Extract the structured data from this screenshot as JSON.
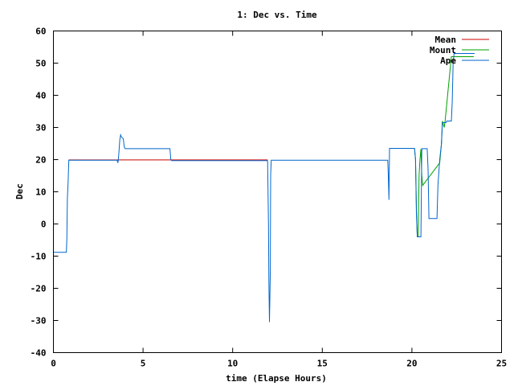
{
  "chart_data": {
    "type": "line",
    "title": "1: Dec vs. Time",
    "xlabel": "time (Elapse Hours)",
    "ylabel": "Dec",
    "xlim": [
      0,
      25
    ],
    "ylim": [
      -40,
      60
    ],
    "xticks": [
      0,
      5,
      10,
      15,
      20,
      25
    ],
    "yticks": [
      -40,
      -30,
      -20,
      -10,
      0,
      10,
      20,
      30,
      40,
      50,
      60
    ],
    "grid": false,
    "legend_position": "top-right",
    "series": [
      {
        "name": "Mean",
        "color": "#cc0000",
        "points": [
          [
            0.85,
            19.9
          ],
          [
            3.55,
            19.9
          ],
          [
            6.5,
            19.9
          ],
          [
            11.95,
            19.9
          ]
        ]
      },
      {
        "name": "Mount",
        "color": "#00a000",
        "points": [
          [
            20.15,
            23.3
          ],
          [
            20.2,
            20.0
          ],
          [
            20.25,
            5.0
          ],
          [
            20.3,
            -4.0
          ],
          [
            20.35,
            -4.0
          ],
          [
            20.4,
            15.0
          ],
          [
            20.45,
            20.0
          ],
          [
            20.5,
            23.3
          ],
          [
            20.55,
            15.0
          ],
          [
            20.6,
            12.0
          ],
          [
            21.55,
            19.0
          ],
          [
            21.65,
            25.0
          ],
          [
            21.7,
            32.0
          ],
          [
            21.8,
            30.0
          ],
          [
            21.85,
            32.0
          ],
          [
            22.2,
            52.0
          ],
          [
            23.45,
            52.0
          ]
        ]
      },
      {
        "name": "Ape",
        "color": "#0066cc",
        "points": [
          [
            0.0,
            -8.8
          ],
          [
            0.72,
            -8.8
          ],
          [
            0.75,
            -5.0
          ],
          [
            0.78,
            8.0
          ],
          [
            0.82,
            13.0
          ],
          [
            0.86,
            19.8
          ],
          [
            3.55,
            19.8
          ],
          [
            3.6,
            19.0
          ],
          [
            3.65,
            22.0
          ],
          [
            3.7,
            26.0
          ],
          [
            3.75,
            27.7
          ],
          [
            3.8,
            27.0
          ],
          [
            3.9,
            26.5
          ],
          [
            3.95,
            24.0
          ],
          [
            4.0,
            23.4
          ],
          [
            6.5,
            23.4
          ],
          [
            6.55,
            20.0
          ],
          [
            6.6,
            19.7
          ],
          [
            11.95,
            19.7
          ],
          [
            11.98,
            7.0
          ],
          [
            12.0,
            0.0
          ],
          [
            12.02,
            -18.0
          ],
          [
            12.05,
            -30.5
          ],
          [
            12.08,
            -22.0
          ],
          [
            12.1,
            -14.0
          ],
          [
            12.12,
            15.0
          ],
          [
            12.15,
            19.8
          ],
          [
            18.65,
            19.8
          ],
          [
            18.68,
            16.0
          ],
          [
            18.72,
            7.5
          ],
          [
            18.75,
            23.5
          ],
          [
            20.15,
            23.5
          ],
          [
            20.2,
            20.0
          ],
          [
            20.25,
            3.0
          ],
          [
            20.3,
            -4.0
          ],
          [
            20.5,
            -4.0
          ],
          [
            20.55,
            23.4
          ],
          [
            20.85,
            23.4
          ],
          [
            20.9,
            17.0
          ],
          [
            20.95,
            1.7
          ],
          [
            21.4,
            1.7
          ],
          [
            21.45,
            12.0
          ],
          [
            21.55,
            20.0
          ],
          [
            21.65,
            25.0
          ],
          [
            21.7,
            31.5
          ],
          [
            21.9,
            31.5
          ],
          [
            21.95,
            32.0
          ],
          [
            22.2,
            32.0
          ],
          [
            22.25,
            38.0
          ],
          [
            22.3,
            50.0
          ],
          [
            22.35,
            53.0
          ],
          [
            22.5,
            53.0
          ],
          [
            23.5,
            53.0
          ]
        ]
      }
    ]
  }
}
